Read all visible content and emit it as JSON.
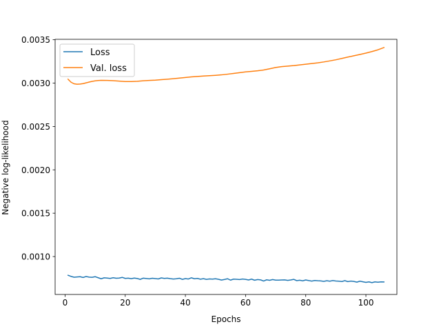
{
  "chart_data": {
    "type": "line",
    "title": "",
    "xlabel": "Epochs",
    "ylabel": "Negative log-likelihood",
    "xlim": [
      -3.3,
      110.3
    ],
    "ylim": [
      0.000563,
      0.003505
    ],
    "xticks": [
      0,
      20,
      40,
      60,
      80,
      100
    ],
    "xtick_labels": [
      "0",
      "20",
      "40",
      "60",
      "80",
      "100"
    ],
    "yticks": [
      0.001,
      0.0015,
      0.002,
      0.0025,
      0.003,
      0.0035
    ],
    "ytick_labels": [
      "0.0010",
      "0.0015",
      "0.0020",
      "0.0025",
      "0.0030",
      "0.0035"
    ],
    "grid": false,
    "legend_position": "top-left",
    "series": [
      {
        "name": "Loss",
        "color": "#1f77b4",
        "x": [
          1,
          2,
          3,
          4,
          5,
          6,
          7,
          8,
          9,
          10,
          11,
          12,
          13,
          14,
          15,
          16,
          17,
          18,
          19,
          20,
          21,
          22,
          23,
          24,
          25,
          26,
          27,
          28,
          29,
          30,
          31,
          32,
          33,
          34,
          35,
          36,
          37,
          38,
          39,
          40,
          41,
          42,
          43,
          44,
          45,
          46,
          47,
          48,
          49,
          50,
          51,
          52,
          53,
          54,
          55,
          56,
          57,
          58,
          59,
          60,
          61,
          62,
          63,
          64,
          65,
          66,
          67,
          68,
          69,
          70,
          71,
          72,
          73,
          74,
          75,
          76,
          77,
          78,
          79,
          80,
          81,
          82,
          83,
          84,
          85,
          86,
          87,
          88,
          89,
          90,
          91,
          92,
          93,
          94,
          95,
          96,
          97,
          98,
          99,
          100,
          101,
          102,
          103,
          104,
          105,
          106
        ],
        "y": [
          0.000784,
          0.000771,
          0.000762,
          0.000765,
          0.000768,
          0.000759,
          0.00077,
          0.000763,
          0.000761,
          0.000768,
          0.000756,
          0.000744,
          0.000755,
          0.000752,
          0.000748,
          0.000756,
          0.00075,
          0.000752,
          0.00076,
          0.000748,
          0.000751,
          0.000745,
          0.000752,
          0.000747,
          0.000737,
          0.000751,
          0.000747,
          0.000743,
          0.00075,
          0.000746,
          0.000742,
          0.000754,
          0.000748,
          0.000751,
          0.000745,
          0.000741,
          0.000744,
          0.00075,
          0.000737,
          0.000746,
          0.000741,
          0.000755,
          0.000744,
          0.000748,
          0.000739,
          0.000745,
          0.000737,
          0.000742,
          0.00074,
          0.000744,
          0.000738,
          0.000729,
          0.000736,
          0.000744,
          0.000728,
          0.00074,
          0.000738,
          0.000735,
          0.000741,
          0.000737,
          0.00073,
          0.00074,
          0.000727,
          0.000735,
          0.000731,
          0.000718,
          0.000732,
          0.000726,
          0.000735,
          0.000728,
          0.000728,
          0.00073,
          0.000731,
          0.000725,
          0.00073,
          0.000737,
          0.000722,
          0.000727,
          0.00072,
          0.00073,
          0.000723,
          0.000717,
          0.000724,
          0.000721,
          0.000719,
          0.000714,
          0.000721,
          0.000716,
          0.000723,
          0.000718,
          0.000716,
          0.000712,
          0.000722,
          0.000711,
          0.000717,
          0.000713,
          0.000705,
          0.000716,
          0.000709,
          0.000702,
          0.000708,
          0.000699,
          0.000708,
          0.000704,
          0.000708,
          0.000707
        ]
      },
      {
        "name": "Val. loss",
        "color": "#ff7f0e",
        "x": [
          1,
          2,
          3,
          4,
          5,
          6,
          7,
          8,
          9,
          10,
          11,
          12,
          14,
          16,
          18,
          20,
          22,
          24,
          26,
          28,
          30,
          32,
          34,
          36,
          38,
          40,
          42,
          44,
          46,
          48,
          50,
          52,
          54,
          56,
          58,
          60,
          62,
          64,
          66,
          68,
          70,
          72,
          74,
          76,
          78,
          80,
          82,
          84,
          86,
          88,
          90,
          92,
          94,
          96,
          98,
          100,
          102,
          104,
          106
        ],
        "y": [
          0.003045,
          0.00301,
          0.002992,
          0.002987,
          0.002989,
          0.002994,
          0.003003,
          0.003012,
          0.00302,
          0.003026,
          0.00303,
          0.003032,
          0.003031,
          0.003028,
          0.003023,
          0.003018,
          0.003018,
          0.003021,
          0.003027,
          0.003031,
          0.003034,
          0.00304,
          0.003045,
          0.003051,
          0.003058,
          0.003065,
          0.003072,
          0.003077,
          0.003082,
          0.003086,
          0.00309,
          0.003095,
          0.003103,
          0.003111,
          0.00312,
          0.003129,
          0.003135,
          0.003142,
          0.003151,
          0.003165,
          0.00318,
          0.00319,
          0.003196,
          0.003202,
          0.00321,
          0.003218,
          0.003226,
          0.003234,
          0.003244,
          0.003256,
          0.003269,
          0.003284,
          0.0033,
          0.003315,
          0.00333,
          0.003346,
          0.003364,
          0.003384,
          0.00341
        ]
      }
    ]
  }
}
